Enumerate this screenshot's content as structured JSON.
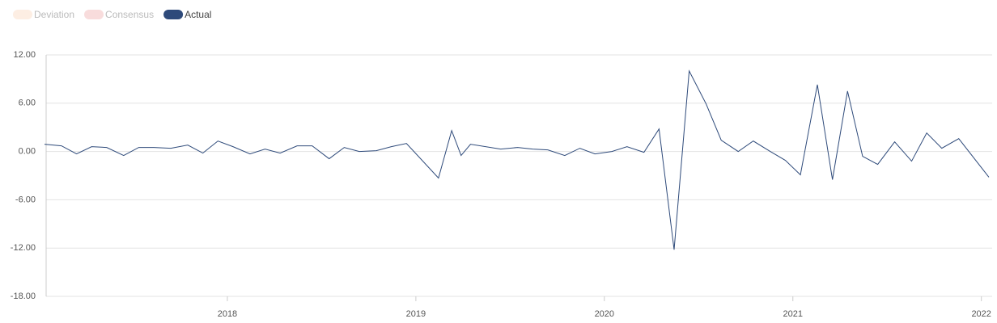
{
  "chart_data": {
    "type": "line",
    "inactive_series": [
      {
        "name": "Deviation",
        "color": "#fdeee3"
      },
      {
        "name": "Consensus",
        "color": "#f8dcdc"
      }
    ],
    "x": [
      2017.03,
      2017.12,
      2017.2,
      2017.28,
      2017.36,
      2017.45,
      2017.53,
      2017.61,
      2017.7,
      2017.79,
      2017.87,
      2017.95,
      2018.03,
      2018.12,
      2018.2,
      2018.28,
      2018.37,
      2018.45,
      2018.54,
      2018.62,
      2018.7,
      2018.79,
      2018.87,
      2018.95,
      2019.12,
      2019.19,
      2019.24,
      2019.29,
      2019.45,
      2019.54,
      2019.62,
      2019.7,
      2019.79,
      2019.87,
      2019.95,
      2020.04,
      2020.12,
      2020.21,
      2020.29,
      2020.37,
      2020.45,
      2020.54,
      2020.62,
      2020.71,
      2020.79,
      2020.88,
      2020.96,
      2021.04,
      2021.13,
      2021.21,
      2021.29,
      2021.37,
      2021.45,
      2021.54,
      2021.63,
      2021.71,
      2021.79,
      2021.88,
      2022.04
    ],
    "series": [
      {
        "name": "Actual",
        "color": "#2e4a7a",
        "values": [
          0.9,
          0.7,
          -0.3,
          0.6,
          0.5,
          -0.5,
          0.5,
          0.5,
          0.4,
          0.8,
          -0.2,
          1.3,
          0.6,
          -0.3,
          0.3,
          -0.2,
          0.7,
          0.7,
          -0.9,
          0.5,
          0.0,
          0.1,
          0.6,
          1.0,
          -3.3,
          2.6,
          -0.5,
          0.9,
          0.3,
          0.5,
          0.3,
          0.2,
          -0.5,
          0.4,
          -0.3,
          0.0,
          0.6,
          -0.1,
          2.8,
          -12.2,
          10.0,
          5.9,
          1.4,
          0.0,
          1.3,
          0.0,
          -1.1,
          -2.9,
          8.3,
          -3.5,
          7.5,
          -0.6,
          -1.6,
          1.2,
          -1.2,
          2.3,
          0.4,
          1.6,
          -3.2
        ]
      }
    ],
    "xlim": [
      2017.03,
      2022.04
    ],
    "xticks": [
      2018,
      2019,
      2020,
      2021,
      2022
    ],
    "ylim": [
      -18,
      12
    ],
    "yticks": [
      {
        "value": 12,
        "label": "12.00"
      },
      {
        "value": 6,
        "label": "6.00"
      },
      {
        "value": 0,
        "label": "0.00"
      },
      {
        "value": -6,
        "label": "-6.00"
      },
      {
        "value": -12,
        "label": "-12.00"
      },
      {
        "value": -18,
        "label": "-18.00"
      }
    ],
    "grid": true
  }
}
